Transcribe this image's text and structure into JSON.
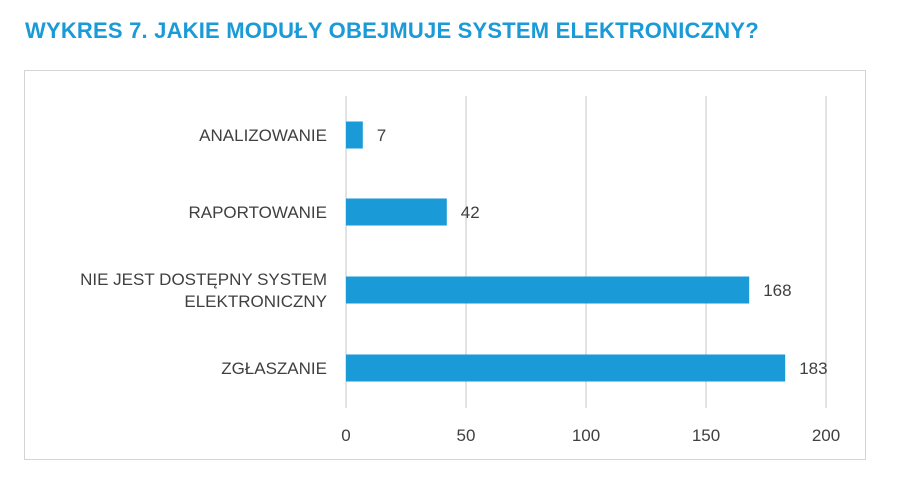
{
  "title": "WYKRES 7.  JAKIE MODUŁY OBEJMUJE SYSTEM ELEKTRONICZNY?",
  "colors": {
    "bar": "#1a9ad6",
    "grid": "#d9d9d9",
    "title": "#1a9ad6",
    "text": "#404040"
  },
  "chart_data": {
    "type": "bar",
    "orientation": "horizontal",
    "categories": [
      [
        "ANALIZOWANIE"
      ],
      [
        "RAPORTOWANIE"
      ],
      [
        "NIE JEST DOSTĘPNY SYSTEM",
        "ELEKTRONICZNY"
      ],
      [
        "ZGŁASZANIE"
      ]
    ],
    "values": [
      7,
      42,
      168,
      183
    ],
    "xlim": [
      0,
      200
    ],
    "ticks": [
      0,
      50,
      100,
      150,
      200
    ],
    "grid": true,
    "data_labels": true
  }
}
